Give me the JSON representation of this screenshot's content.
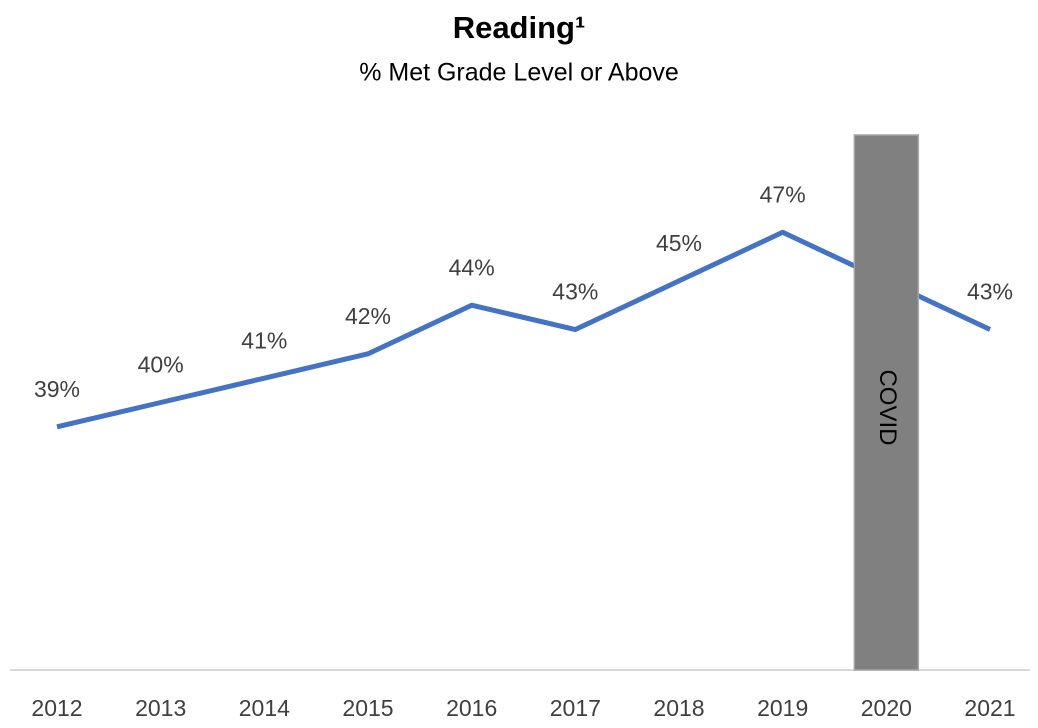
{
  "chart_data": {
    "type": "line",
    "title": "Reading¹",
    "subtitle": "% Met Grade Level or Above",
    "categories": [
      "2012",
      "2013",
      "2014",
      "2015",
      "2016",
      "2017",
      "2018",
      "2019",
      "2020",
      "2021"
    ],
    "series": [
      {
        "name": "Reading",
        "color": "#4472c4",
        "values": [
          39,
          40,
          41,
          42,
          44,
          43,
          45,
          47,
          null,
          43
        ],
        "value_labels": [
          "39%",
          "40%",
          "41%",
          "42%",
          "44%",
          "43%",
          "45%",
          "47%",
          null,
          "43%"
        ]
      }
    ],
    "connect_gaps": true,
    "ylim": [
      29,
      51
    ],
    "annotations": [
      {
        "label": "COVID",
        "x": "2020",
        "color": "#808080"
      }
    ]
  }
}
